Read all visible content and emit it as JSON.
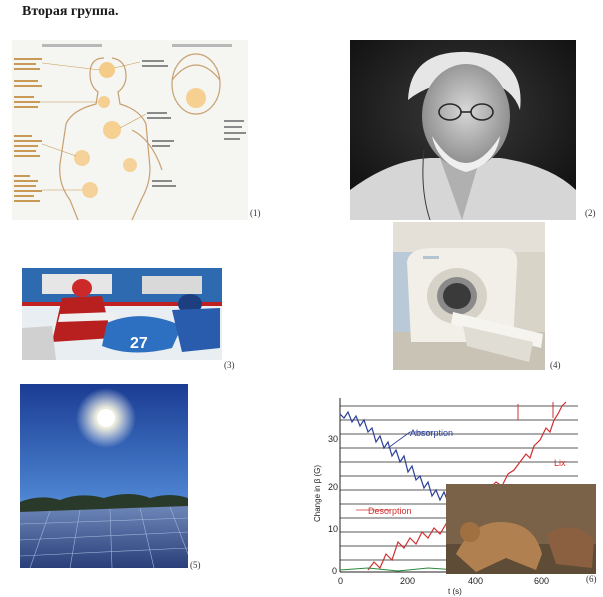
{
  "heading": "Вторая группа.",
  "captions": [
    "(1)",
    "(2)",
    "(3)",
    "(4)",
    "(5)",
    "(6)"
  ],
  "panel6": {
    "labels": {
      "absorption": "Absorption",
      "desorption": "Desorption",
      "lix": "Lix"
    },
    "ylabel": "Change in β (G)",
    "xlabel": "t (s)",
    "yticks": [
      "30",
      "20",
      "10",
      "0"
    ],
    "xticks": [
      "0",
      "200",
      "400",
      "600"
    ]
  },
  "colors": {
    "absorption": "#2b3f9a",
    "desorption": "#d03030",
    "lix": "#d03030"
  }
}
